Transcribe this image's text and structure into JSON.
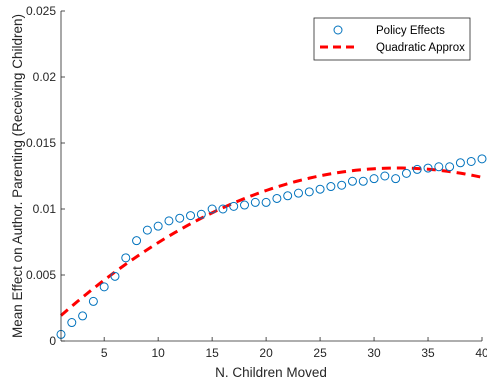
{
  "chart_data": {
    "type": "scatter",
    "xlabel": "N. Children Moved",
    "ylabel": "Mean Effect on Author. Parenting (Receiving Children)",
    "xlim": [
      1,
      40
    ],
    "ylim": [
      0,
      0.025
    ],
    "x_ticks": [
      5,
      10,
      15,
      20,
      25,
      30,
      35,
      40
    ],
    "y_ticks": [
      0,
      0.005,
      0.01,
      0.015,
      0.02,
      0.025
    ],
    "y_tick_labels": [
      "0",
      "0.005",
      "0.01",
      "0.015",
      "0.02",
      "0.025"
    ],
    "grid": false,
    "legend_position": "top-right",
    "series": [
      {
        "name": "Policy Effects",
        "style": "open-circle markers",
        "color": "#0072BD",
        "x": [
          1,
          2,
          3,
          4,
          5,
          6,
          7,
          8,
          9,
          10,
          11,
          12,
          13,
          14,
          15,
          16,
          17,
          18,
          19,
          20,
          21,
          22,
          23,
          24,
          25,
          26,
          27,
          28,
          29,
          30,
          31,
          32,
          33,
          34,
          35,
          36,
          37,
          38,
          39,
          40
        ],
        "y": [
          0.0005,
          0.0014,
          0.0019,
          0.003,
          0.0041,
          0.0049,
          0.0063,
          0.0076,
          0.0084,
          0.0087,
          0.0091,
          0.0093,
          0.0095,
          0.0096,
          0.01,
          0.01,
          0.0102,
          0.0103,
          0.0105,
          0.0105,
          0.0108,
          0.011,
          0.0112,
          0.0113,
          0.0115,
          0.0117,
          0.0118,
          0.0121,
          0.0121,
          0.0123,
          0.0125,
          0.0123,
          0.0127,
          0.013,
          0.0131,
          0.0132,
          0.0132,
          0.0135,
          0.0136,
          0.0138
        ]
      },
      {
        "name": "Quadratic Approx",
        "style": "dashed line",
        "color": "#FF0000",
        "quadratic": {
          "a": 0.0012,
          "b": 0.00074,
          "c": -1.15e-05
        },
        "x_range": [
          1,
          40
        ]
      }
    ]
  }
}
